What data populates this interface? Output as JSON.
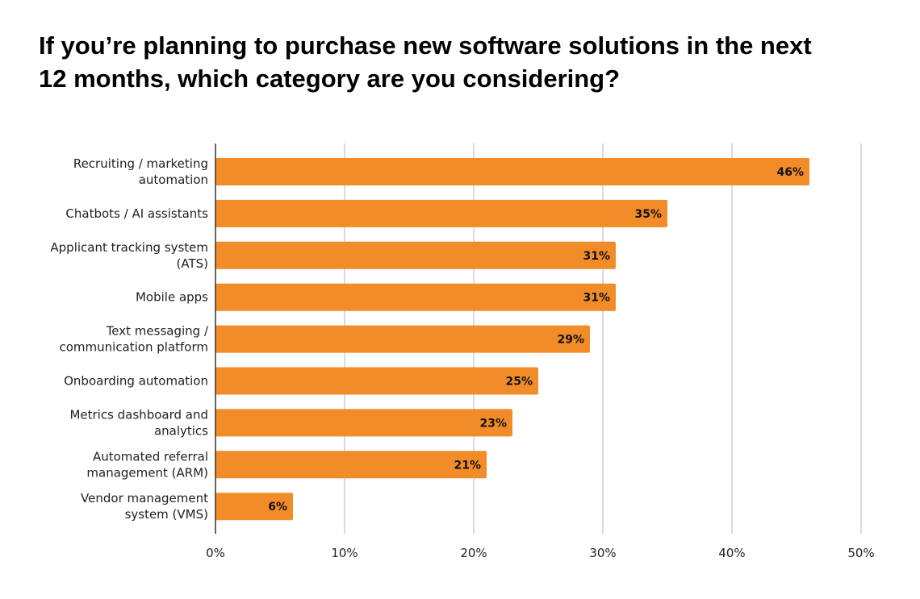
{
  "title": {
    "line1": "If you’re planning to purchase new software solutions in the next",
    "line2": "12 months, which category are you considering?"
  },
  "colors": {
    "bar": "#F28C28",
    "grid": "#CFCFCF",
    "axis": "#333333"
  },
  "chart_data": {
    "type": "bar",
    "orientation": "horizontal",
    "categories": [
      [
        "Recruiting / marketing",
        "automation"
      ],
      [
        "Chatbots / AI assistants"
      ],
      [
        "Applicant tracking system",
        "(ATS)"
      ],
      [
        "Mobile apps"
      ],
      [
        "Text messaging /",
        "communication platform"
      ],
      [
        "Onboarding automation"
      ],
      [
        "Metrics dashboard and",
        "analytics"
      ],
      [
        "Automated referral",
        "management (ARM)"
      ],
      [
        "Vendor management",
        "system (VMS)"
      ]
    ],
    "values": [
      46,
      35,
      31,
      31,
      29,
      25,
      23,
      21,
      6
    ],
    "data_labels": [
      "46%",
      "35%",
      "31%",
      "31%",
      "29%",
      "25%",
      "23%",
      "21%",
      "6%"
    ],
    "xlim": [
      0,
      50
    ],
    "ticks": [
      0,
      10,
      20,
      30,
      40,
      50
    ],
    "tick_labels": [
      "0%",
      "10%",
      "20%",
      "30%",
      "40%",
      "50%"
    ],
    "grid": true,
    "legend": false
  }
}
